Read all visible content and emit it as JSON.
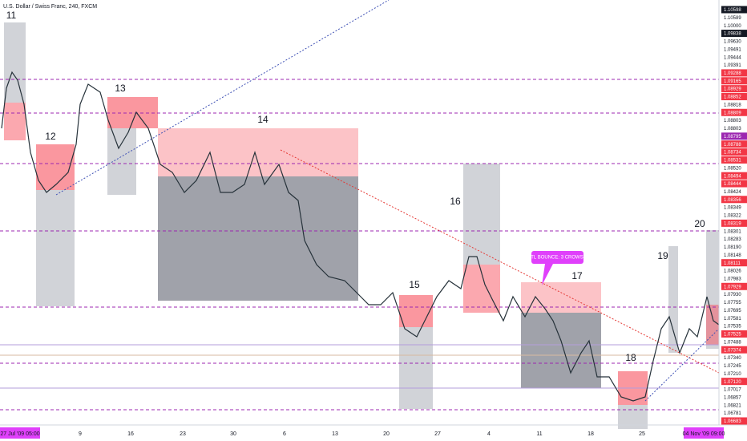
{
  "header": {
    "title": "U.S. Dollar / Swiss Franc, 240, FXCM"
  },
  "price_labels": [
    {
      "text": "1.10598",
      "color": "dark"
    },
    {
      "text": "1.10589",
      "color": "light"
    },
    {
      "text": "1.10000",
      "color": "light"
    },
    {
      "text": "1.09838",
      "color": "dark"
    },
    {
      "text": "1.09630",
      "color": "light"
    },
    {
      "text": "1.09491",
      "color": "light"
    },
    {
      "text": "1.09444",
      "color": "light"
    },
    {
      "text": "1.09391",
      "color": "light"
    },
    {
      "text": "1.09288",
      "color": "red"
    },
    {
      "text": "1.09165",
      "color": "red"
    },
    {
      "text": "1.08929",
      "color": "red"
    },
    {
      "text": "1.08852",
      "color": "red"
    },
    {
      "text": "1.08818",
      "color": "light"
    },
    {
      "text": "1.08809",
      "color": "red"
    },
    {
      "text": "1.08803",
      "color": "light"
    },
    {
      "text": "1.08803",
      "color": "light"
    },
    {
      "text": "1.08795",
      "color": "purple"
    },
    {
      "text": "1.08788",
      "color": "red"
    },
    {
      "text": "1.08734",
      "color": "red"
    },
    {
      "text": "1.08531",
      "color": "red"
    },
    {
      "text": "1.08520",
      "color": "light"
    },
    {
      "text": "1.08494",
      "color": "red"
    },
    {
      "text": "1.08444",
      "color": "red"
    },
    {
      "text": "1.08424",
      "color": "light"
    },
    {
      "text": "1.08356",
      "color": "red"
    },
    {
      "text": "1.08349",
      "color": "light"
    },
    {
      "text": "1.08322",
      "color": "light"
    },
    {
      "text": "1.08319",
      "color": "red"
    },
    {
      "text": "1.08301",
      "color": "light"
    },
    {
      "text": "1.08283",
      "color": "light"
    },
    {
      "text": "1.08190",
      "color": "light"
    },
    {
      "text": "1.08148",
      "color": "light"
    },
    {
      "text": "1.08111",
      "color": "red"
    },
    {
      "text": "1.08026",
      "color": "light"
    },
    {
      "text": "1.07983",
      "color": "light"
    },
    {
      "text": "1.07929",
      "color": "red"
    },
    {
      "text": "1.07930",
      "color": "light"
    },
    {
      "text": "1.07755",
      "color": "light"
    },
    {
      "text": "1.07695",
      "color": "light"
    },
    {
      "text": "1.07581",
      "color": "light"
    },
    {
      "text": "1.07535",
      "color": "light"
    },
    {
      "text": "1.07525",
      "color": "red"
    },
    {
      "text": "1.07488",
      "color": "light"
    },
    {
      "text": "1.07374",
      "color": "red"
    },
    {
      "text": "1.07340",
      "color": "light"
    },
    {
      "text": "1.07245",
      "color": "light"
    },
    {
      "text": "1.07210",
      "color": "light"
    },
    {
      "text": "1.07120",
      "color": "red"
    },
    {
      "text": "1.07017",
      "color": "light"
    },
    {
      "text": "1.06857",
      "color": "light"
    },
    {
      "text": "1.06821",
      "color": "light"
    },
    {
      "text": "1.06781",
      "color": "light"
    },
    {
      "text": "1.06683",
      "color": "red"
    }
  ],
  "date_labels": [
    "27 Jul '09   05:00",
    "9",
    "16",
    "23",
    "30",
    "6",
    "13",
    "20",
    "27",
    "4",
    "11",
    "18",
    "25",
    "04 Nov '09   09:00"
  ],
  "zones": [
    "11",
    "12",
    "13",
    "14",
    "15",
    "16",
    "17",
    "18",
    "19",
    "20"
  ],
  "annotation": "TL BOUNCE: 3 CROWS"
}
